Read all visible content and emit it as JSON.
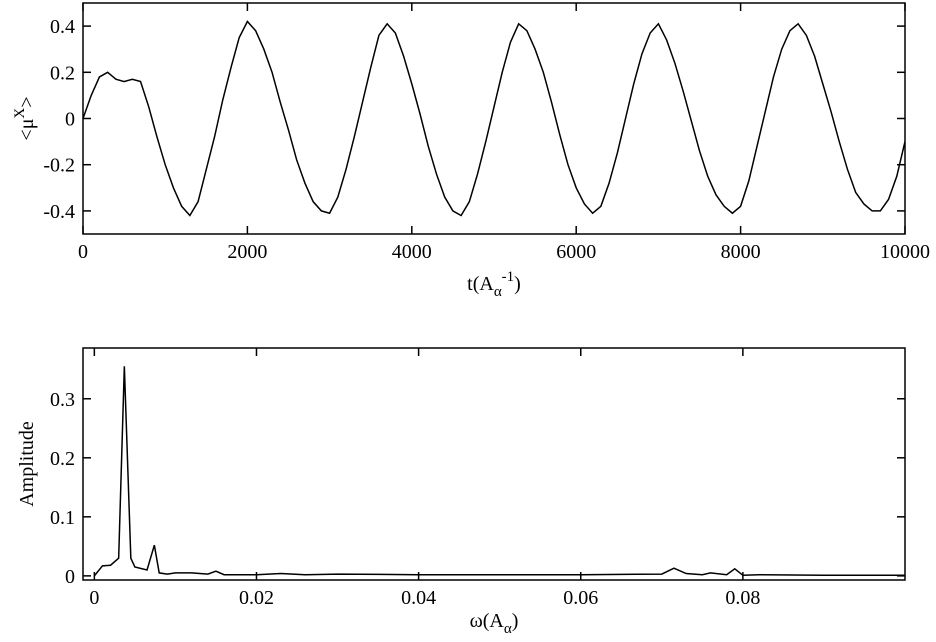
{
  "chart_data": [
    {
      "type": "line",
      "color": "#000000",
      "x_label": [
        "t(A",
        "α",
        "-1",
        ")"
      ],
      "y_label": [
        "<μ",
        "X",
        ">"
      ],
      "xlim": [
        0,
        10000
      ],
      "ylim": [
        -0.5,
        0.5
      ],
      "xticks": [
        0,
        2000,
        4000,
        6000,
        8000,
        10000
      ],
      "yticks": [
        -0.4,
        -0.2,
        0,
        0.2,
        0.4
      ],
      "x": [
        0,
        100,
        200,
        300,
        400,
        500,
        600,
        700,
        800,
        900,
        1000,
        1100,
        1200,
        1300,
        1400,
        1500,
        1600,
        1700,
        1800,
        1900,
        2000,
        2100,
        2200,
        2300,
        2400,
        2500,
        2600,
        2700,
        2800,
        2900,
        3000,
        3100,
        3200,
        3300,
        3400,
        3500,
        3600,
        3700,
        3800,
        3900,
        4000,
        4100,
        4200,
        4300,
        4400,
        4500,
        4600,
        4700,
        4800,
        4900,
        5000,
        5100,
        5200,
        5300,
        5400,
        5500,
        5600,
        5700,
        5800,
        5900,
        6000,
        6100,
        6200,
        6300,
        6400,
        6500,
        6600,
        6700,
        6800,
        6900,
        7000,
        7100,
        7200,
        7300,
        7400,
        7500,
        7600,
        7700,
        7800,
        7900,
        8000,
        8100,
        8200,
        8300,
        8400,
        8500,
        8600,
        8700,
        8800,
        8900,
        9000,
        9100,
        9200,
        9300,
        9400,
        9500,
        9600,
        9700,
        9800,
        9900,
        10000
      ],
      "values": [
        0.0,
        0.1,
        0.18,
        0.2,
        0.17,
        0.16,
        0.17,
        0.16,
        0.05,
        -0.08,
        -0.2,
        -0.3,
        -0.38,
        -0.42,
        -0.36,
        -0.22,
        -0.08,
        0.08,
        0.22,
        0.35,
        0.42,
        0.38,
        0.3,
        0.2,
        0.07,
        -0.05,
        -0.18,
        -0.28,
        -0.36,
        -0.4,
        -0.41,
        -0.34,
        -0.22,
        -0.08,
        0.07,
        0.22,
        0.36,
        0.41,
        0.37,
        0.27,
        0.15,
        0.02,
        -0.12,
        -0.24,
        -0.34,
        -0.4,
        -0.42,
        -0.36,
        -0.24,
        -0.1,
        0.05,
        0.2,
        0.33,
        0.41,
        0.38,
        0.3,
        0.2,
        0.07,
        -0.07,
        -0.2,
        -0.3,
        -0.37,
        -0.41,
        -0.38,
        -0.28,
        -0.15,
        0.0,
        0.15,
        0.28,
        0.37,
        0.41,
        0.34,
        0.24,
        0.12,
        -0.01,
        -0.14,
        -0.25,
        -0.33,
        -0.38,
        -0.41,
        -0.38,
        -0.27,
        -0.12,
        0.03,
        0.18,
        0.3,
        0.38,
        0.41,
        0.36,
        0.27,
        0.15,
        0.03,
        -0.1,
        -0.22,
        -0.32,
        -0.37,
        -0.4,
        -0.4,
        -0.35,
        -0.25,
        -0.1
      ]
    },
    {
      "type": "line",
      "color": "#000000",
      "x_label": [
        "ω(A",
        "α",
        ")"
      ],
      "y_label": [
        "Amplitude"
      ],
      "xlim": [
        -0.0014,
        0.1
      ],
      "ylim": [
        -0.007,
        0.386
      ],
      "xticks": [
        0,
        0.02,
        0.04,
        0.06,
        0.08
      ],
      "yticks": [
        0,
        0.1,
        0.2,
        0.3
      ],
      "x": [
        0,
        0.001,
        0.002,
        0.003,
        0.0037,
        0.0045,
        0.005,
        0.0065,
        0.0074,
        0.008,
        0.009,
        0.01,
        0.012,
        0.014,
        0.015,
        0.016,
        0.02,
        0.023,
        0.026,
        0.03,
        0.04,
        0.05,
        0.06,
        0.07,
        0.0715,
        0.073,
        0.075,
        0.076,
        0.078,
        0.079,
        0.08,
        0.082,
        0.09,
        0.1
      ],
      "values": [
        0.0,
        0.017,
        0.018,
        0.03,
        0.355,
        0.03,
        0.015,
        0.01,
        0.052,
        0.005,
        0.003,
        0.005,
        0.005,
        0.003,
        0.008,
        0.002,
        0.002,
        0.004,
        0.002,
        0.003,
        0.002,
        0.002,
        0.002,
        0.003,
        0.013,
        0.004,
        0.002,
        0.005,
        0.002,
        0.012,
        0.001,
        0.002,
        0.001,
        0.001
      ]
    }
  ]
}
